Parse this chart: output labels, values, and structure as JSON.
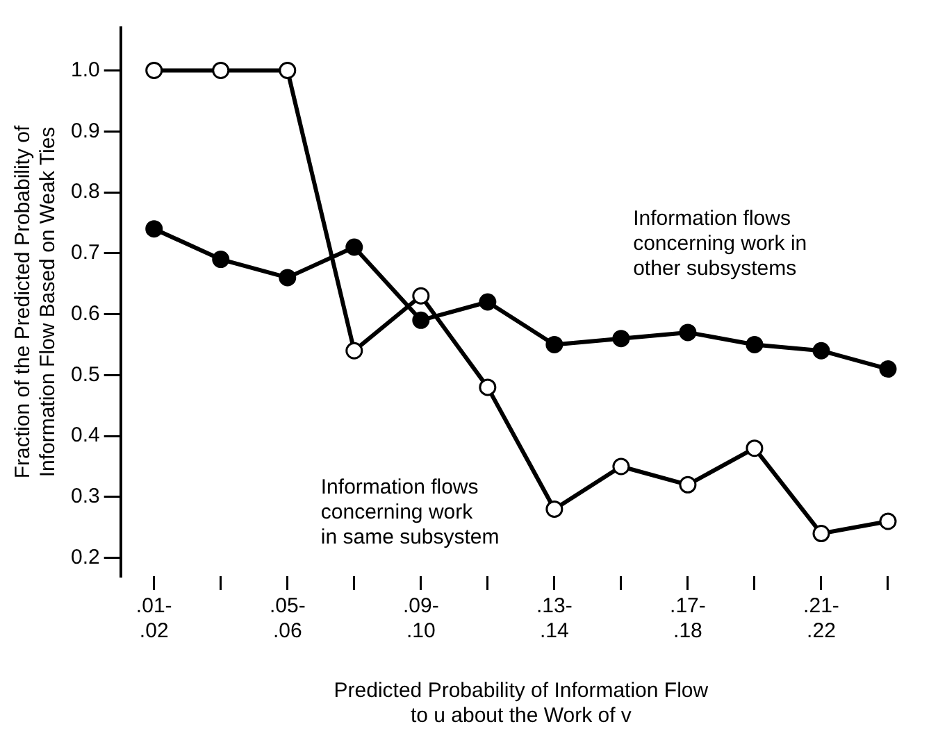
{
  "chart_data": {
    "type": "line",
    "xlabel": "Predicted Probability of Information Flow\nto u about the Work of v",
    "ylabel": "Fraction of the Predicted Probability of\nInformation Flow Based on Weak Ties",
    "categories": [
      ".01-\n.02",
      null,
      ".05-\n.06",
      null,
      ".09-\n.10",
      null,
      ".13-\n.14",
      null,
      ".17-\n.18",
      null,
      ".21-\n.22",
      null
    ],
    "series": [
      {
        "name": "Information flows\nconcerning work in\nother subsystems",
        "color": "#000000",
        "marker": "circle",
        "values": [
          0.74,
          0.69,
          0.66,
          0.71,
          0.59,
          0.62,
          0.55,
          0.56,
          0.57,
          0.55,
          0.54,
          0.51
        ]
      },
      {
        "name": "Information flows\nconcerning work\nin same subsystem",
        "color": "#000000",
        "marker": "circle-open",
        "values": [
          1.0,
          1.0,
          1.0,
          0.54,
          0.63,
          0.48,
          0.28,
          0.35,
          0.32,
          0.38,
          0.24,
          0.26
        ]
      }
    ],
    "ylim": [
      0.17,
      1.07
    ],
    "yticks": [
      {
        "value": 0.2,
        "label": "0.2"
      },
      0.3,
      0.4,
      0.5,
      0.6,
      0.7,
      0.8,
      0.9,
      {
        "value": 1.0,
        "label": "1.0"
      }
    ],
    "grid": false,
    "legend": false,
    "line_style": "solid"
  }
}
